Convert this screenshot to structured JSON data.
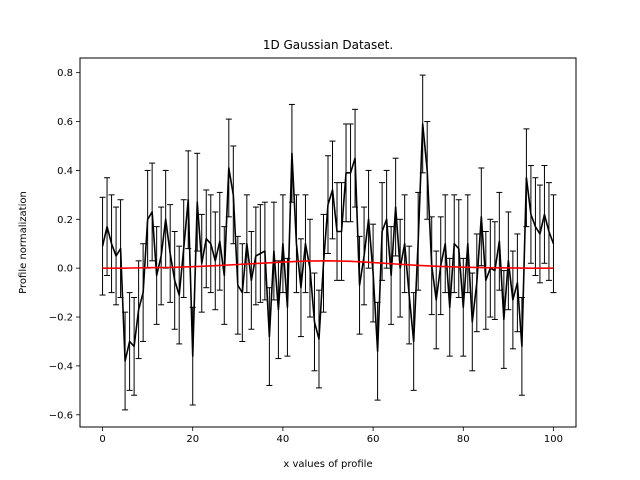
{
  "chart_data": {
    "type": "line",
    "title": "1D Gaussian Dataset.",
    "xlabel": "x values of profile",
    "ylabel": "Profile normalization",
    "xlim": [
      -5,
      105
    ],
    "ylim": [
      -0.65,
      0.86
    ],
    "xticks": [
      0,
      20,
      40,
      60,
      80,
      100
    ],
    "yticks": [
      -0.6,
      -0.4,
      -0.2,
      0.0,
      0.2,
      0.4,
      0.6,
      0.8
    ],
    "xtick_labels": [
      "0",
      "20",
      "40",
      "60",
      "80",
      "100"
    ],
    "ytick_labels": [
      "−0.6",
      "−0.4",
      "−0.2",
      "0.0",
      "0.2",
      "0.4",
      "0.6",
      "0.8"
    ],
    "grid": false,
    "series": [
      {
        "color": "#000000",
        "error_bars": true,
        "yerr": 0.2,
        "x": [
          0,
          1,
          2,
          3,
          4,
          5,
          6,
          7,
          8,
          9,
          10,
          11,
          12,
          13,
          14,
          15,
          16,
          17,
          18,
          19,
          20,
          21,
          22,
          23,
          24,
          25,
          26,
          27,
          28,
          29,
          30,
          31,
          32,
          33,
          34,
          35,
          36,
          37,
          38,
          39,
          40,
          41,
          42,
          43,
          44,
          45,
          46,
          47,
          48,
          49,
          50,
          51,
          52,
          53,
          54,
          55,
          56,
          57,
          58,
          59,
          60,
          61,
          62,
          63,
          64,
          65,
          66,
          67,
          68,
          69,
          70,
          71,
          72,
          73,
          74,
          75,
          76,
          77,
          78,
          79,
          80,
          81,
          82,
          83,
          84,
          85,
          86,
          87,
          88,
          89,
          90,
          91,
          92,
          93,
          94,
          95,
          96,
          97,
          98,
          99,
          100
        ],
        "y": [
          0.09,
          0.17,
          0.1,
          0.05,
          0.08,
          -0.38,
          -0.3,
          -0.32,
          -0.17,
          -0.1,
          0.2,
          0.23,
          -0.03,
          0.05,
          0.2,
          0.06,
          -0.05,
          -0.11,
          0.08,
          0.28,
          -0.36,
          0.27,
          0.02,
          0.12,
          0.1,
          0.03,
          0.11,
          -0.03,
          0.41,
          0.3,
          -0.07,
          -0.1,
          0.1,
          -0.05,
          0.05,
          0.06,
          0.07,
          -0.28,
          0.07,
          -0.17,
          0.1,
          -0.16,
          0.47,
          0.1,
          -0.08,
          0.1,
          0.0,
          -0.22,
          -0.29,
          0.02,
          0.26,
          0.32,
          0.15,
          0.15,
          0.39,
          0.39,
          0.45,
          -0.07,
          0.05,
          0.2,
          -0.02,
          -0.34,
          0.15,
          0.2,
          -0.03,
          0.25,
          0.0,
          0.1,
          -0.11,
          -0.3,
          0.11,
          0.59,
          0.4,
          0.01,
          -0.13,
          0.01,
          0.1,
          -0.16,
          0.1,
          0.08,
          -0.16,
          0.1,
          -0.22,
          -0.06,
          0.21,
          -0.05,
          0.0,
          -0.01,
          0.11,
          -0.21,
          0.03,
          -0.13,
          -0.06,
          -0.32,
          0.37,
          0.22,
          0.17,
          0.14,
          0.22,
          0.15,
          0.1
        ]
      },
      {
        "color": "#ff0000",
        "error_bars": false,
        "x": [
          0,
          5,
          10,
          15,
          20,
          25,
          30,
          35,
          40,
          45,
          50,
          55,
          60,
          65,
          70,
          75,
          80,
          85,
          90,
          95,
          100
        ],
        "y": [
          0.0,
          0.0,
          0.002,
          0.003,
          0.006,
          0.01,
          0.015,
          0.02,
          0.025,
          0.029,
          0.03,
          0.028,
          0.023,
          0.017,
          0.011,
          0.007,
          0.004,
          0.002,
          0.001,
          0.0,
          0.0
        ]
      }
    ]
  }
}
